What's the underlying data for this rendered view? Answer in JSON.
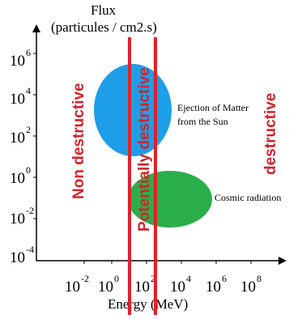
{
  "y_axis": {
    "title_line1": "Flux",
    "title_line2": "(particules / cm2.s)",
    "ticks": [
      {
        "base": "10",
        "exp": "6"
      },
      {
        "base": "10",
        "exp": "4"
      },
      {
        "base": "10",
        "exp": "2"
      },
      {
        "base": "10",
        "exp": "0"
      },
      {
        "base": "10",
        "exp": "-2"
      },
      {
        "base": "10",
        "exp": "-4"
      }
    ]
  },
  "x_axis": {
    "title": "Energy (MeV)",
    "ticks": [
      {
        "base": "10",
        "exp": "-2"
      },
      {
        "base": "10",
        "exp": "0"
      },
      {
        "base": "10",
        "exp": "2"
      },
      {
        "base": "10",
        "exp": "4"
      },
      {
        "base": "10",
        "exp": "6"
      },
      {
        "base": "10",
        "exp": "8"
      }
    ]
  },
  "regions": {
    "non_destructive": "Non destructive",
    "potentially_destructive": "Potentially destructive",
    "destructive": "destructive"
  },
  "phenomena": {
    "solar": {
      "line1": "Ejection of Matter",
      "line2": "from the Sun"
    },
    "cosmic": {
      "label": "Cosmic radiation"
    }
  },
  "colors": {
    "solar_fill": "#1e9ee8",
    "cosmic_fill": "#2aae4a",
    "boundary": "#e1202a",
    "zone_text": "#d2232a"
  }
}
